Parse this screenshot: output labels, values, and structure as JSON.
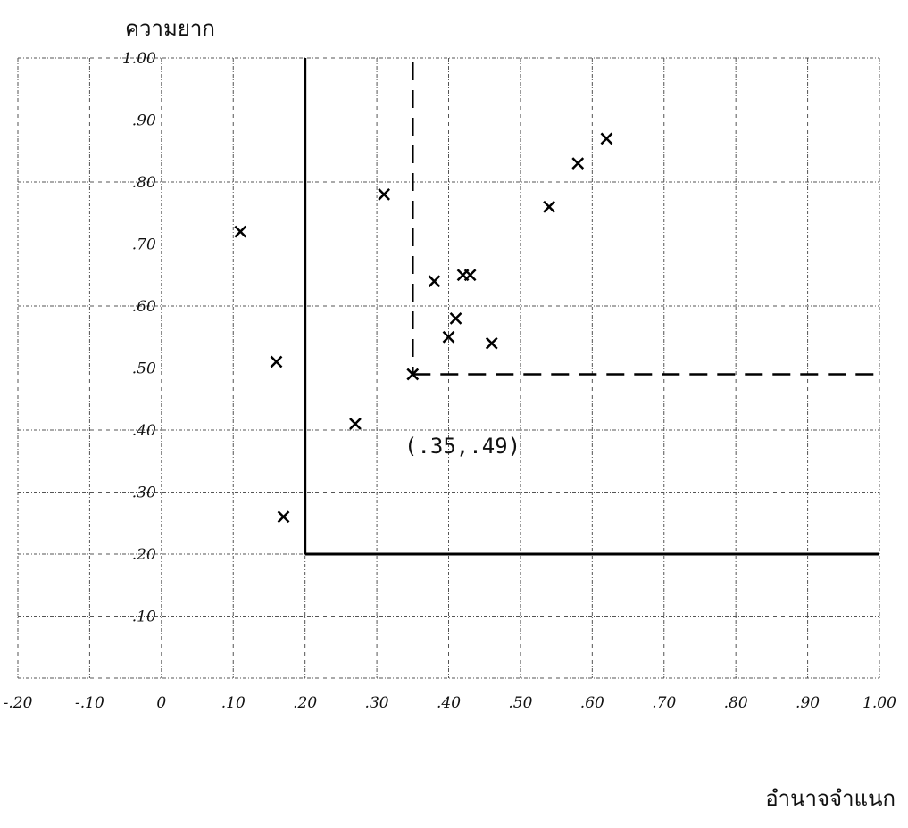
{
  "chart_data": {
    "type": "scatter",
    "ylabel": "ความยาก",
    "xlabel": "อำนาจจำแนก",
    "x_ticks": [
      "-.20",
      "-.10",
      "0",
      ".10",
      ".20",
      ".30",
      ".40",
      ".50",
      ".60",
      ".70",
      ".80",
      ".90",
      "1.00"
    ],
    "x_tick_values": [
      -0.2,
      -0.1,
      0,
      0.1,
      0.2,
      0.3,
      0.4,
      0.5,
      0.6,
      0.7,
      0.8,
      0.9,
      1.0
    ],
    "y_ticks": [
      ".10",
      ".20",
      ".30",
      ".40",
      ".50",
      ".60",
      ".70",
      ".80",
      ".90",
      "1.00"
    ],
    "y_tick_values": [
      0.1,
      0.2,
      0.3,
      0.4,
      0.5,
      0.6,
      0.7,
      0.8,
      0.9,
      1.0
    ],
    "xlim": [
      -0.2,
      1.0
    ],
    "ylim": [
      0.0,
      1.0
    ],
    "grid": true,
    "marker": "x",
    "points": [
      {
        "x": 0.11,
        "y": 0.72
      },
      {
        "x": 0.16,
        "y": 0.51
      },
      {
        "x": 0.17,
        "y": 0.26
      },
      {
        "x": 0.27,
        "y": 0.41
      },
      {
        "x": 0.31,
        "y": 0.78
      },
      {
        "x": 0.35,
        "y": 0.49
      },
      {
        "x": 0.38,
        "y": 0.64
      },
      {
        "x": 0.4,
        "y": 0.55
      },
      {
        "x": 0.41,
        "y": 0.58
      },
      {
        "x": 0.42,
        "y": 0.65
      },
      {
        "x": 0.43,
        "y": 0.65
      },
      {
        "x": 0.46,
        "y": 0.54
      },
      {
        "x": 0.54,
        "y": 0.76
      },
      {
        "x": 0.58,
        "y": 0.83
      },
      {
        "x": 0.62,
        "y": 0.87
      }
    ],
    "reference_lines": {
      "x": 0.35,
      "y": 0.49
    },
    "boundary": {
      "x_min": 0.2,
      "y_min": 0.2
    },
    "annotation": {
      "text": "(.35,.49)",
      "x": 0.35,
      "y": 0.49
    }
  }
}
